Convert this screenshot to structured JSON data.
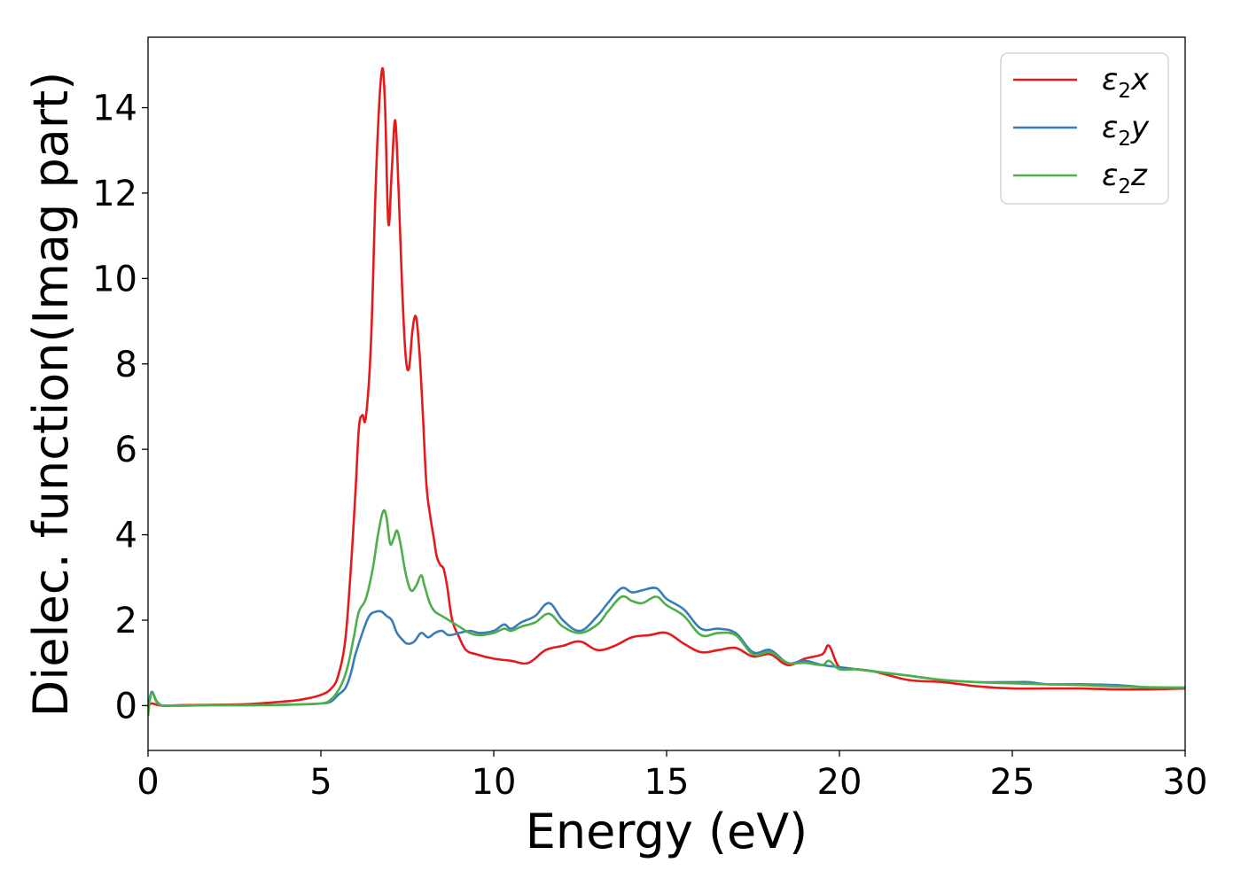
{
  "chart_data": {
    "type": "line",
    "title": "",
    "xlabel": "Energy (eV)",
    "ylabel": "Dielec. function(Imag part)",
    "xlim": [
      0,
      30
    ],
    "ylim": [
      -1.05,
      15.65
    ],
    "xticks": [
      0,
      5,
      10,
      15,
      20,
      25,
      30
    ],
    "yticks": [
      0,
      2,
      4,
      6,
      8,
      10,
      12,
      14
    ],
    "grid": false,
    "legend": "top-right",
    "series": [
      {
        "name": "ε₂x",
        "label_main": "ε",
        "label_sub": "2",
        "label_tail": "x",
        "color": "#e41a1c",
        "x": [
          0,
          0.1,
          0.25,
          0.4,
          0.6,
          1,
          2,
          3,
          4,
          4.5,
          5,
          5.3,
          5.5,
          5.7,
          5.85,
          6.0,
          6.1,
          6.2,
          6.3,
          6.45,
          6.6,
          6.75,
          6.85,
          6.95,
          7.05,
          7.15,
          7.25,
          7.35,
          7.45,
          7.55,
          7.65,
          7.75,
          7.85,
          7.95,
          8.05,
          8.15,
          8.25,
          8.35,
          8.45,
          8.55,
          8.65,
          8.8,
          9.0,
          9.2,
          9.5,
          10,
          10.5,
          11,
          11.5,
          12,
          12.5,
          13,
          13.5,
          14,
          14.5,
          15,
          15.5,
          16,
          16.5,
          17,
          17.5,
          18,
          18.5,
          19,
          19.5,
          19.7,
          20,
          20.5,
          21,
          22,
          23,
          24,
          25,
          26,
          27,
          28,
          29,
          30
        ],
        "y": [
          0,
          0.05,
          0.02,
          0,
          0,
          0.01,
          0.02,
          0.04,
          0.1,
          0.15,
          0.25,
          0.4,
          0.7,
          1.5,
          3.0,
          5.0,
          6.5,
          6.8,
          6.75,
          8.5,
          12.5,
          14.8,
          14.2,
          11.3,
          12.5,
          13.7,
          12.0,
          9.8,
          8.2,
          7.9,
          8.8,
          9.1,
          8.3,
          6.8,
          5.2,
          4.5,
          4.0,
          3.5,
          3.3,
          3.2,
          2.8,
          2.0,
          1.6,
          1.3,
          1.2,
          1.1,
          1.05,
          1.0,
          1.3,
          1.4,
          1.5,
          1.3,
          1.4,
          1.6,
          1.65,
          1.7,
          1.45,
          1.25,
          1.3,
          1.35,
          1.15,
          1.2,
          0.95,
          1.1,
          1.2,
          1.4,
          0.9,
          0.85,
          0.8,
          0.6,
          0.55,
          0.45,
          0.4,
          0.4,
          0.4,
          0.38,
          0.38,
          0.4
        ]
      },
      {
        "name": "ε₂y",
        "label_main": "ε",
        "label_sub": "2",
        "label_tail": "y",
        "color": "#377eb8",
        "x": [
          0,
          0.1,
          0.25,
          0.4,
          0.6,
          1,
          2,
          3,
          4,
          5,
          5.3,
          5.5,
          5.7,
          5.85,
          6.0,
          6.2,
          6.4,
          6.6,
          6.75,
          6.9,
          7.05,
          7.2,
          7.35,
          7.5,
          7.7,
          7.9,
          8.1,
          8.3,
          8.5,
          8.7,
          9.0,
          9.3,
          9.6,
          10,
          10.3,
          10.5,
          10.8,
          11.2,
          11.6,
          12,
          12.5,
          13,
          13.3,
          13.7,
          14,
          14.3,
          14.7,
          15,
          15.5,
          16,
          16.5,
          17,
          17.5,
          18,
          18.5,
          19,
          19.5,
          20,
          20.5,
          21,
          21.5,
          22,
          23,
          24,
          25,
          25.5,
          26,
          27,
          28,
          29,
          30
        ],
        "y": [
          -0.1,
          0.32,
          0.1,
          0,
          0,
          0,
          0.01,
          0.01,
          0.02,
          0.05,
          0.1,
          0.25,
          0.4,
          0.7,
          1.2,
          1.7,
          2.1,
          2.2,
          2.2,
          2.1,
          2.0,
          1.7,
          1.55,
          1.45,
          1.5,
          1.7,
          1.6,
          1.7,
          1.75,
          1.65,
          1.7,
          1.75,
          1.7,
          1.75,
          1.9,
          1.8,
          1.95,
          2.1,
          2.4,
          2.0,
          1.75,
          2.1,
          2.4,
          2.75,
          2.65,
          2.7,
          2.75,
          2.5,
          2.25,
          1.8,
          1.8,
          1.7,
          1.25,
          1.3,
          1.0,
          1.05,
          0.95,
          0.9,
          0.85,
          0.8,
          0.75,
          0.7,
          0.6,
          0.55,
          0.55,
          0.55,
          0.5,
          0.5,
          0.48,
          0.42,
          0.42
        ]
      },
      {
        "name": "ε₂z",
        "label_main": "ε",
        "label_sub": "2",
        "label_tail": "z",
        "color": "#4daf4a",
        "x": [
          0,
          0.1,
          0.25,
          0.4,
          0.6,
          1,
          2,
          3,
          4,
          5,
          5.3,
          5.5,
          5.65,
          5.8,
          5.95,
          6.1,
          6.3,
          6.5,
          6.65,
          6.8,
          6.9,
          7.0,
          7.1,
          7.2,
          7.3,
          7.45,
          7.6,
          7.75,
          7.9,
          8.0,
          8.15,
          8.3,
          8.5,
          8.7,
          9.0,
          9.3,
          9.6,
          10,
          10.3,
          10.5,
          10.8,
          11.2,
          11.6,
          12,
          12.5,
          13,
          13.3,
          13.7,
          14,
          14.3,
          14.7,
          15,
          15.5,
          16,
          16.5,
          17,
          17.5,
          18,
          18.5,
          19,
          19.5,
          19.7,
          20,
          20.5,
          21,
          22,
          23,
          24,
          25,
          26,
          27,
          28,
          29,
          30
        ],
        "y": [
          -0.25,
          0.3,
          0.08,
          0,
          0,
          0,
          0.01,
          0.01,
          0.02,
          0.05,
          0.15,
          0.35,
          0.6,
          1.0,
          1.6,
          2.2,
          2.5,
          3.2,
          4.0,
          4.55,
          4.4,
          3.8,
          3.9,
          4.1,
          3.8,
          3.1,
          2.7,
          2.8,
          3.05,
          2.8,
          2.4,
          2.2,
          2.1,
          2.0,
          1.85,
          1.7,
          1.65,
          1.7,
          1.8,
          1.75,
          1.85,
          1.95,
          2.15,
          1.85,
          1.7,
          1.9,
          2.2,
          2.55,
          2.45,
          2.4,
          2.55,
          2.35,
          2.1,
          1.65,
          1.7,
          1.65,
          1.2,
          1.25,
          1.0,
          1.0,
          0.95,
          1.05,
          0.85,
          0.85,
          0.8,
          0.7,
          0.6,
          0.55,
          0.52,
          0.5,
          0.48,
          0.45,
          0.43,
          0.42
        ]
      }
    ]
  }
}
